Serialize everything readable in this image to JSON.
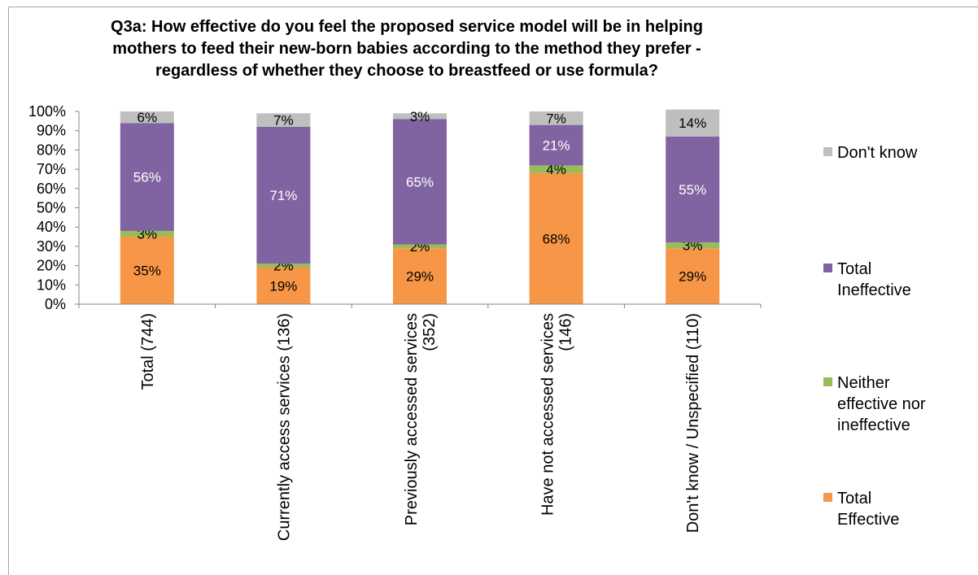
{
  "chart_data": {
    "type": "bar",
    "stacked": true,
    "title_lines": [
      "Q3a: How effective do you feel the proposed service model will be in helping",
      "mothers to feed their new-born babies according to the method they prefer -",
      "regardless of whether they choose to breastfeed or use formula?"
    ],
    "categories": [
      [
        "Total (744)"
      ],
      [
        "Currently access services (136)"
      ],
      [
        "Previously accessed services",
        "(352)"
      ],
      [
        "Have not accessed services",
        "(146)"
      ],
      [
        "Don't know / Unspecified (110)"
      ]
    ],
    "series": [
      {
        "name": "Total Effective",
        "legend_lines": [
          "Total",
          "Effective"
        ],
        "color": "#f79646",
        "values": [
          35,
          19,
          29,
          68,
          29
        ],
        "labels": [
          "35%",
          "19%",
          "29%",
          "68%",
          "29%"
        ],
        "label_color": "#000000"
      },
      {
        "name": "Neither effective nor ineffective",
        "legend_lines": [
          "Neither",
          "effective nor",
          "ineffective"
        ],
        "color": "#9bbb59",
        "values": [
          3,
          2,
          2,
          4,
          3
        ],
        "labels": [
          "3%",
          "2%",
          "2%",
          "4%",
          "3%"
        ],
        "label_color": "#000000"
      },
      {
        "name": "Total Ineffective",
        "legend_lines": [
          "Total",
          "Ineffective"
        ],
        "color": "#8064a2",
        "values": [
          56,
          71,
          65,
          21,
          55
        ],
        "labels": [
          "56%",
          "71%",
          "65%",
          "21%",
          "55%"
        ],
        "label_color": "#ffffff"
      },
      {
        "name": "Don't know",
        "legend_lines": [
          "Don't know"
        ],
        "color": "#bfbfbf",
        "values": [
          6,
          7,
          3,
          7,
          14
        ],
        "labels": [
          "6%",
          "7%",
          "3%",
          "7%",
          "14%"
        ],
        "label_color": "#000000"
      }
    ],
    "ylim": [
      0,
      100
    ],
    "ytick_labels": [
      "0%",
      "10%",
      "20%",
      "30%",
      "40%",
      "50%",
      "60%",
      "70%",
      "80%",
      "90%",
      "100%"
    ],
    "grid": false,
    "legend_position": "right"
  }
}
